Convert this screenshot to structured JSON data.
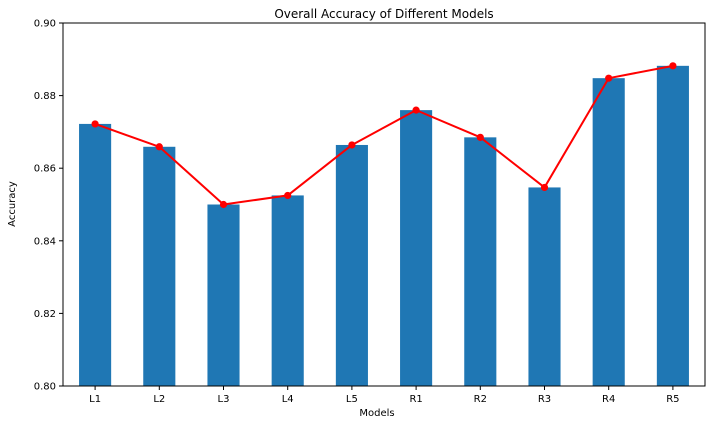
{
  "chart_data": {
    "type": "bar",
    "title": "Overall Accuracy of Different Models",
    "xlabel": "Models",
    "ylabel": "Accuracy",
    "ylim": [
      0.8,
      0.9
    ],
    "yticks": [
      "0.80",
      "0.82",
      "0.84",
      "0.86",
      "0.88",
      "0.90"
    ],
    "categories": [
      "L1",
      "L2",
      "L3",
      "L4",
      "L5",
      "R1",
      "R2",
      "R3",
      "R4",
      "R5"
    ],
    "values": [
      0.8722,
      0.8659,
      0.85,
      0.8525,
      0.8664,
      0.876,
      0.8685,
      0.8547,
      0.8848,
      0.8882
    ],
    "line_overlay": true,
    "grid": false,
    "legend": "none",
    "colors": {
      "bar": "#1f77b4",
      "line": "#ff0000",
      "axis": "#000000"
    }
  }
}
